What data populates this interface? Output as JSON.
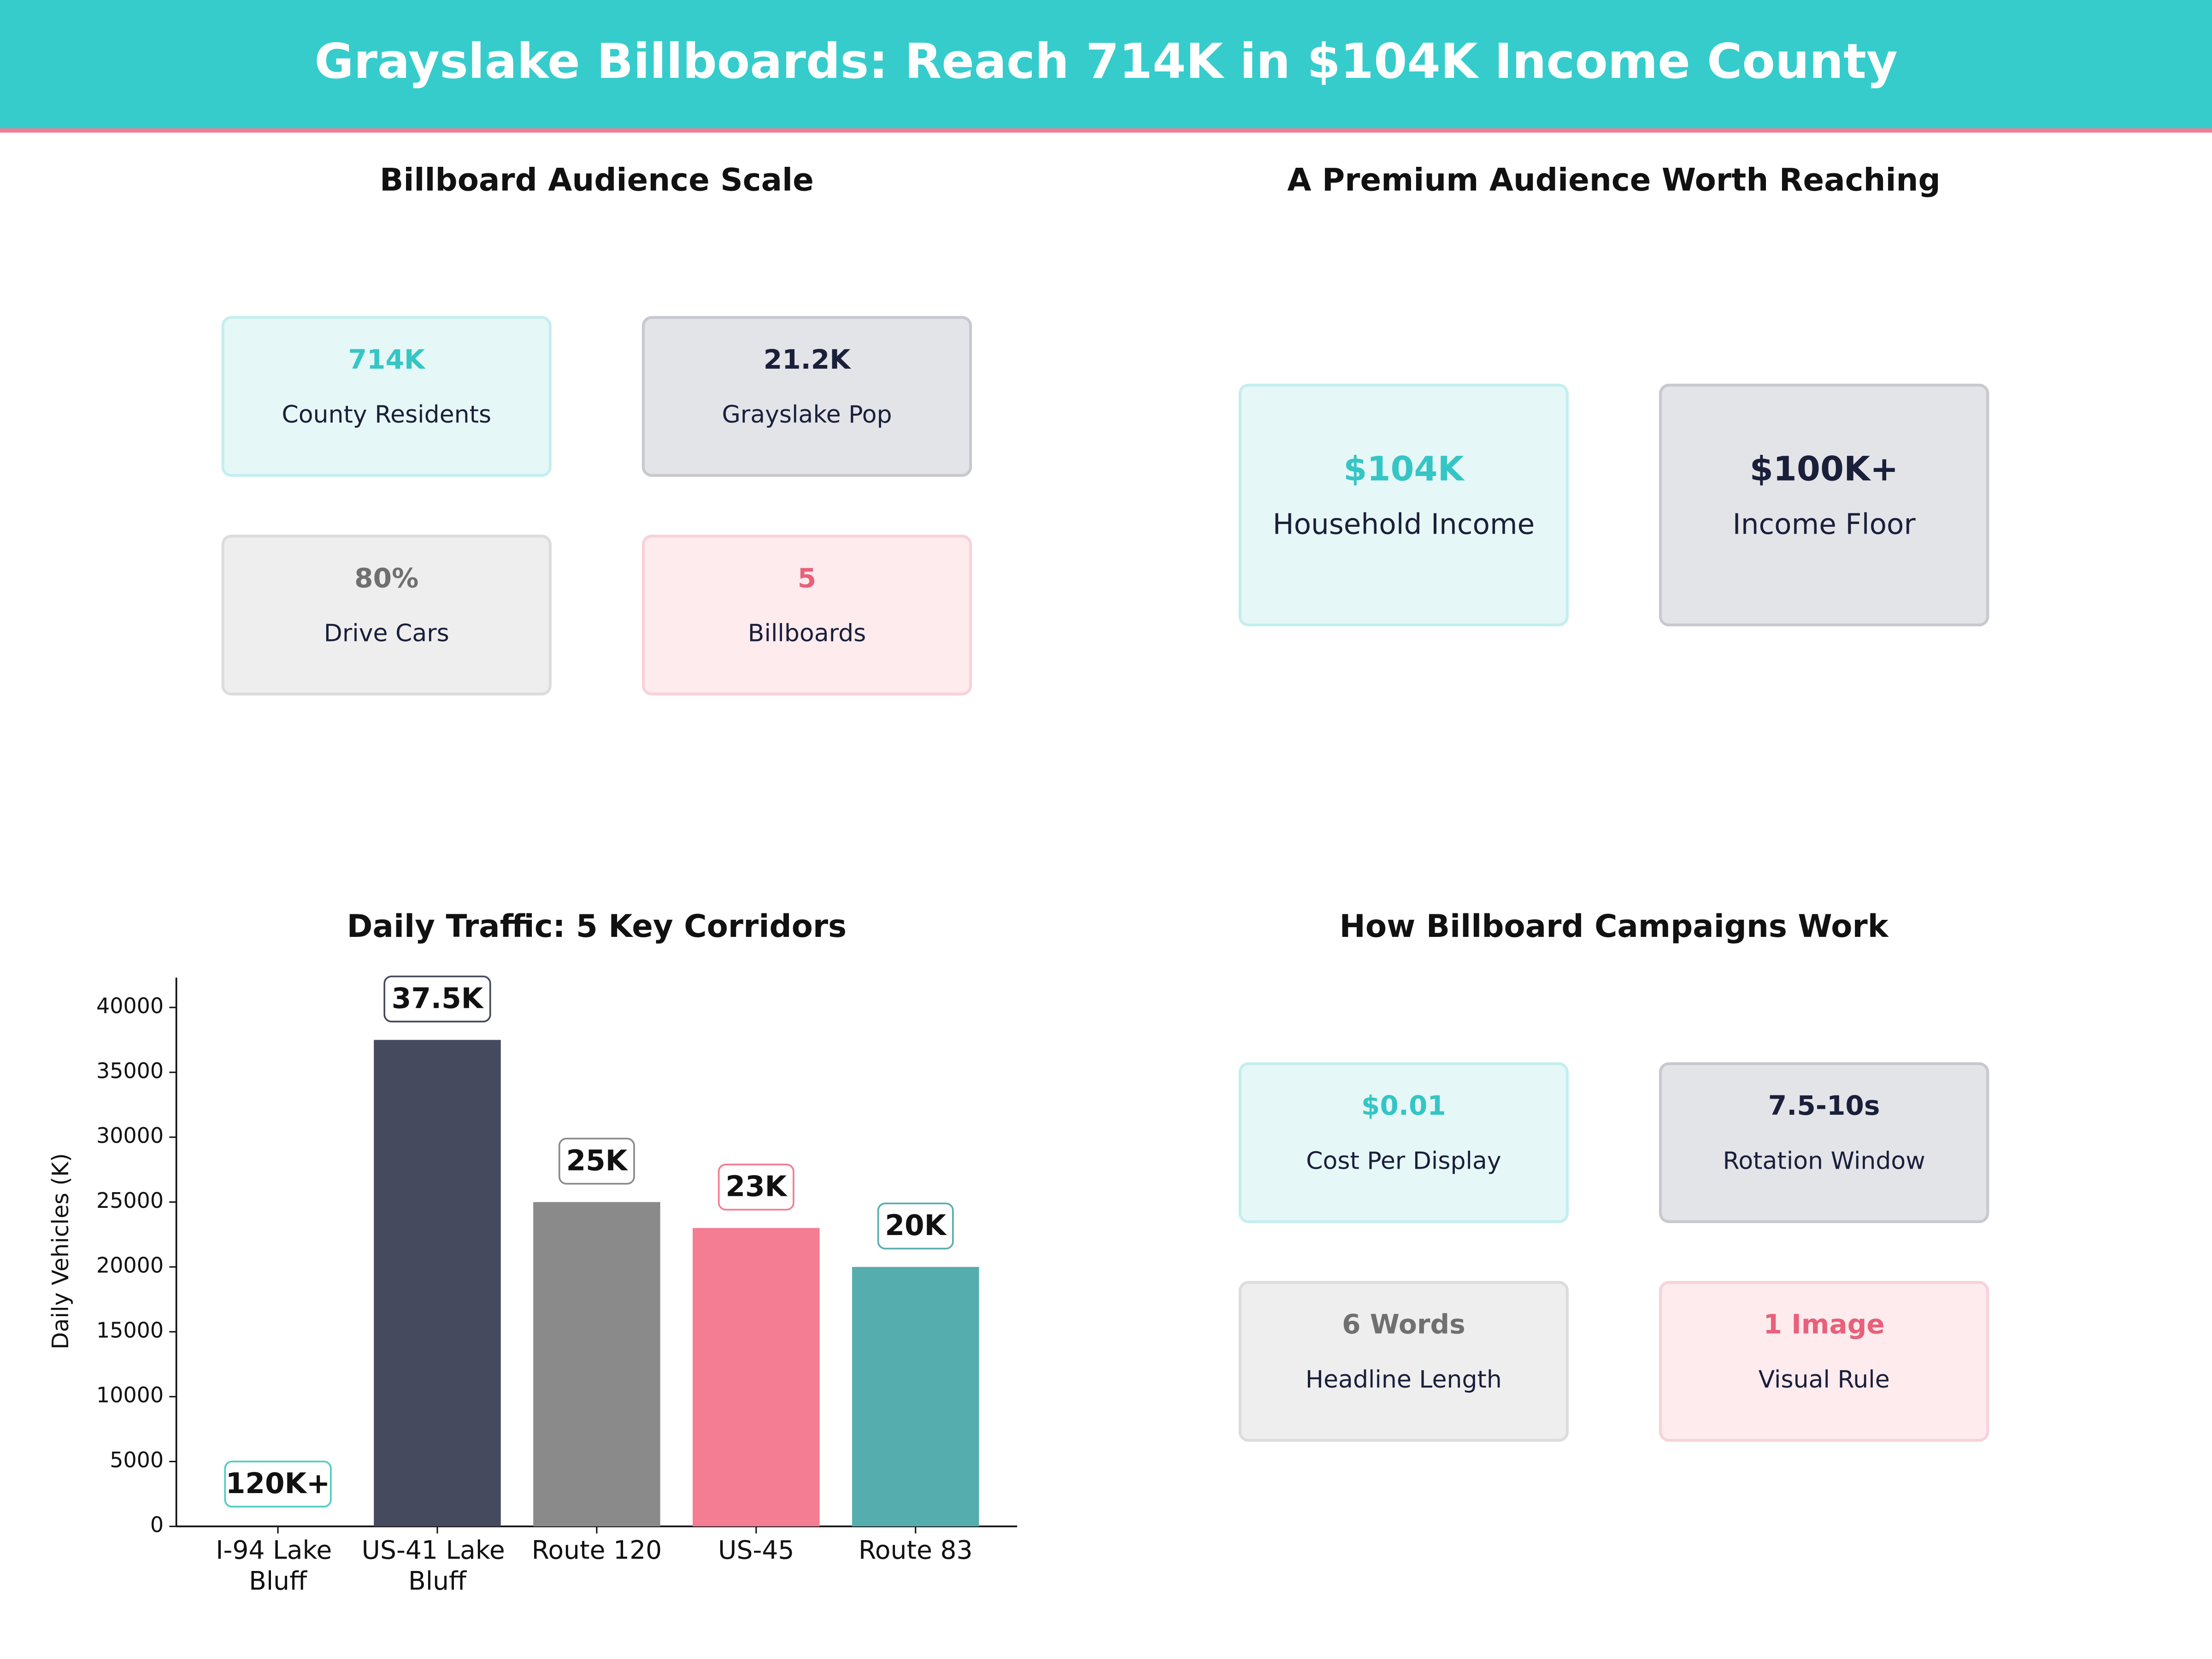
{
  "header": {
    "title": "Grayslake Billboards: Reach 714K in $104K Income County"
  },
  "panels": [
    {
      "title": "Billboard Audience Scale",
      "cards": [
        {
          "value": "714K",
          "label": "County Residents"
        },
        {
          "value": "21.2K",
          "label": "Grayslake Pop"
        },
        {
          "value": "80%",
          "label": "Drive Cars"
        },
        {
          "value": "5",
          "label": "Billboards"
        }
      ]
    },
    {
      "title": "A Premium Audience Worth Reaching",
      "cards": [
        {
          "value": "$104K",
          "label": "Household Income"
        },
        {
          "value": "$100K+",
          "label": "Income Floor"
        }
      ]
    },
    {
      "title": "How Billboard Campaigns Work",
      "cards": [
        {
          "value": "$0.01",
          "label": "Cost Per Display"
        },
        {
          "value": "7.5-10s",
          "label": "Rotation Window"
        },
        {
          "value": "6 Words",
          "label": "Headline Length"
        },
        {
          "value": "1 Image",
          "label": "Visual Rule"
        }
      ]
    }
  ],
  "chart_data": {
    "type": "bar",
    "title": "Daily Traffic: 5 Key Corridors",
    "categories": [
      "I-94 Lake Bluff",
      "US-41 Lake Bluff",
      "Route 120",
      "US-45",
      "Route 83"
    ],
    "values": [
      null,
      37500,
      25000,
      23000,
      20000
    ],
    "value_labels": [
      "120K+",
      "37.5K",
      "25K",
      "23K",
      "20K"
    ],
    "colors": [
      "#4ecdc4",
      "#464a5e",
      "#8a8a8a",
      "#f47c93",
      "#56adae"
    ],
    "ylabel": "Daily Vehicles (K)",
    "ylim": [
      0,
      42300
    ],
    "yticks": [
      0,
      5000,
      10000,
      15000,
      20000,
      25000,
      30000,
      35000,
      40000
    ]
  }
}
